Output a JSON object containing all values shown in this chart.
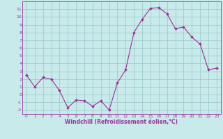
{
  "x": [
    0,
    1,
    2,
    3,
    4,
    5,
    6,
    7,
    8,
    9,
    10,
    11,
    12,
    13,
    14,
    15,
    16,
    17,
    18,
    19,
    20,
    21,
    22,
    23
  ],
  "y": [
    2.5,
    1.0,
    2.2,
    2.0,
    0.5,
    -1.7,
    -0.7,
    -0.8,
    -1.5,
    -0.8,
    -2.0,
    1.5,
    3.2,
    8.0,
    9.7,
    11.1,
    11.2,
    10.4,
    8.5,
    8.7,
    7.4,
    6.5,
    3.2,
    3.4
  ],
  "line_color": "#993399",
  "marker": "D",
  "marker_size": 2,
  "bg_color": "#c8eaea",
  "grid_color": "#a0cccc",
  "xlabel": "Windchill (Refroidissement éolien,°C)",
  "xlabel_color": "#993399",
  "ylim": [
    -2.5,
    12
  ],
  "xlim": [
    -0.5,
    23.5
  ],
  "yticks": [
    -2,
    -1,
    0,
    1,
    2,
    3,
    4,
    5,
    6,
    7,
    8,
    9,
    10,
    11
  ],
  "xticks": [
    0,
    1,
    2,
    3,
    4,
    5,
    6,
    7,
    8,
    9,
    10,
    11,
    12,
    13,
    14,
    15,
    16,
    17,
    18,
    19,
    20,
    21,
    22,
    23
  ],
  "tick_color": "#993399",
  "spine_color": "#993399"
}
